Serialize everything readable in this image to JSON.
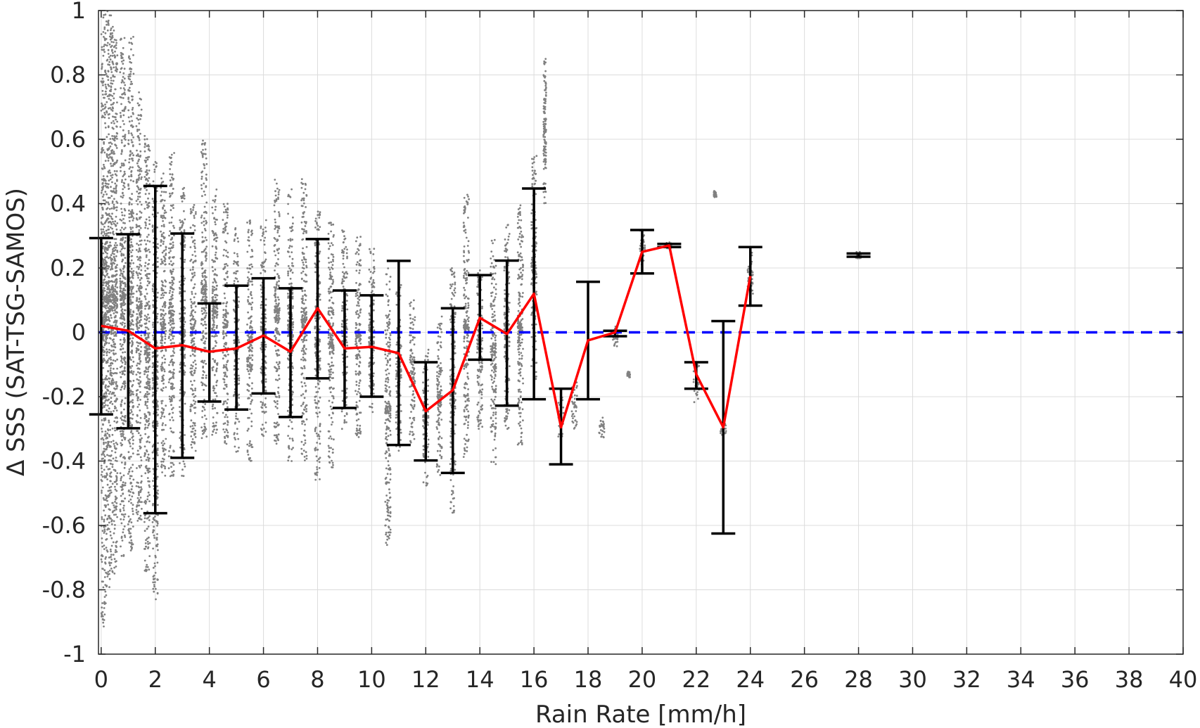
{
  "chart_data": {
    "type": "scatter",
    "title": "",
    "xlabel": "Rain Rate [mm/h]",
    "ylabel": "Δ SSS (SAT-TSG-SAMOS)",
    "xlim": [
      -0.1,
      40
    ],
    "ylim": [
      -1,
      1
    ],
    "x_ticks": [
      0,
      2,
      4,
      6,
      8,
      10,
      12,
      14,
      16,
      18,
      20,
      22,
      24,
      26,
      28,
      30,
      32,
      34,
      36,
      38,
      40
    ],
    "y_ticks": [
      -1,
      -0.8,
      -0.6,
      -0.4,
      -0.2,
      0,
      0.2,
      0.4,
      0.6,
      0.8,
      1
    ],
    "y_tick_labels": [
      "-1",
      "-0.8",
      "-0.6",
      "-0.4",
      "-0.2",
      "0",
      "0.2",
      "0.4",
      "0.6",
      "0.8",
      "1"
    ],
    "grid": true,
    "reference_line": {
      "y": 0,
      "color": "#0000ff",
      "style": "dashed"
    },
    "colors": {
      "scatter": "#808080",
      "mean_line": "#ff0000",
      "error_bars": "#000000"
    },
    "scatter_clusters": [
      {
        "x": 0.1,
        "y_lo": -0.92,
        "y_hi": 1.0,
        "spread": 0.1
      },
      {
        "x": 0.3,
        "y_lo": -0.8,
        "y_hi": 1.0,
        "spread": 0.1
      },
      {
        "x": 0.5,
        "y_lo": -0.75,
        "y_hi": 0.95,
        "spread": 0.1
      },
      {
        "x": 0.8,
        "y_lo": -0.7,
        "y_hi": 0.92,
        "spread": 0.1
      },
      {
        "x": 1.1,
        "y_lo": -0.68,
        "y_hi": 0.92,
        "spread": 0.1
      },
      {
        "x": 1.4,
        "y_lo": -0.6,
        "y_hi": 0.75,
        "spread": 0.1
      },
      {
        "x": 1.7,
        "y_lo": -0.75,
        "y_hi": 0.62,
        "spread": 0.1
      },
      {
        "x": 2.0,
        "y_lo": -0.83,
        "y_hi": 0.55,
        "spread": 0.1
      },
      {
        "x": 2.3,
        "y_lo": -0.45,
        "y_hi": 0.5,
        "spread": 0.1
      },
      {
        "x": 2.6,
        "y_lo": -0.45,
        "y_hi": 0.56,
        "spread": 0.1
      },
      {
        "x": 3.0,
        "y_lo": -0.45,
        "y_hi": 0.45,
        "spread": 0.1
      },
      {
        "x": 3.4,
        "y_lo": -0.37,
        "y_hi": 0.4,
        "spread": 0.1
      },
      {
        "x": 3.8,
        "y_lo": -0.33,
        "y_hi": 0.6,
        "spread": 0.1
      },
      {
        "x": 4.2,
        "y_lo": -0.32,
        "y_hi": 0.45,
        "spread": 0.1
      },
      {
        "x": 4.6,
        "y_lo": -0.35,
        "y_hi": 0.4,
        "spread": 0.1
      },
      {
        "x": 5.0,
        "y_lo": -0.38,
        "y_hi": 0.33,
        "spread": 0.1
      },
      {
        "x": 5.5,
        "y_lo": -0.4,
        "y_hi": 0.35,
        "spread": 0.1
      },
      {
        "x": 6.0,
        "y_lo": -0.33,
        "y_hi": 0.35,
        "spread": 0.1
      },
      {
        "x": 6.5,
        "y_lo": -0.35,
        "y_hi": 0.48,
        "spread": 0.1
      },
      {
        "x": 7.0,
        "y_lo": -0.4,
        "y_hi": 0.45,
        "spread": 0.1
      },
      {
        "x": 7.5,
        "y_lo": -0.4,
        "y_hi": 0.48,
        "spread": 0.1
      },
      {
        "x": 8.0,
        "y_lo": -0.46,
        "y_hi": 0.38,
        "spread": 0.1
      },
      {
        "x": 8.5,
        "y_lo": -0.42,
        "y_hi": 0.35,
        "spread": 0.1
      },
      {
        "x": 9.0,
        "y_lo": -0.3,
        "y_hi": 0.32,
        "spread": 0.1
      },
      {
        "x": 9.5,
        "y_lo": -0.33,
        "y_hi": 0.3,
        "spread": 0.1
      },
      {
        "x": 10.0,
        "y_lo": -0.25,
        "y_hi": 0.26,
        "spread": 0.1
      },
      {
        "x": 10.6,
        "y_lo": -0.67,
        "y_hi": 0.2,
        "spread": 0.1
      },
      {
        "x": 11.0,
        "y_lo": -0.4,
        "y_hi": 0.15,
        "spread": 0.1
      },
      {
        "x": 11.5,
        "y_lo": -0.35,
        "y_hi": 0.1,
        "spread": 0.1
      },
      {
        "x": 12.0,
        "y_lo": -0.48,
        "y_hi": -0.05,
        "spread": 0.1
      },
      {
        "x": 12.5,
        "y_lo": -0.45,
        "y_hi": 0.05,
        "spread": 0.1
      },
      {
        "x": 13.0,
        "y_lo": -0.57,
        "y_hi": 0.2,
        "spread": 0.1
      },
      {
        "x": 13.5,
        "y_lo": -0.4,
        "y_hi": 0.43,
        "spread": 0.1
      },
      {
        "x": 14.0,
        "y_lo": -0.3,
        "y_hi": 0.2,
        "spread": 0.1
      },
      {
        "x": 14.5,
        "y_lo": -0.42,
        "y_hi": 0.3,
        "spread": 0.1
      },
      {
        "x": 15.0,
        "y_lo": -0.3,
        "y_hi": 0.35,
        "spread": 0.1
      },
      {
        "x": 15.5,
        "y_lo": -0.37,
        "y_hi": 0.4,
        "spread": 0.1
      },
      {
        "x": 16.0,
        "y_lo": -0.15,
        "y_hi": 0.55,
        "spread": 0.1
      },
      {
        "x": 16.4,
        "y_lo": 0.4,
        "y_hi": 0.85,
        "spread": 0.05
      },
      {
        "x": 17.0,
        "y_lo": -0.33,
        "y_hi": -0.2,
        "spread": 0.1
      },
      {
        "x": 17.5,
        "y_lo": -0.3,
        "y_hi": -0.15,
        "spread": 0.1
      },
      {
        "x": 18.5,
        "y_lo": -0.33,
        "y_hi": -0.25,
        "spread": 0.1
      },
      {
        "x": 19.0,
        "y_lo": -0.05,
        "y_hi": 0.02,
        "spread": 0.1
      },
      {
        "x": 19.5,
        "y_lo": -0.14,
        "y_hi": -0.12,
        "spread": 0.05
      },
      {
        "x": 20.0,
        "y_lo": 0.2,
        "y_hi": 0.32,
        "spread": 0.1
      },
      {
        "x": 21.0,
        "y_lo": 0.26,
        "y_hi": 0.28,
        "spread": 0.1
      },
      {
        "x": 22.0,
        "y_lo": -0.22,
        "y_hi": -0.1,
        "spread": 0.1
      },
      {
        "x": 22.7,
        "y_lo": 0.42,
        "y_hi": 0.44,
        "spread": 0.05
      },
      {
        "x": 23.0,
        "y_lo": -0.32,
        "y_hi": -0.28,
        "spread": 0.1
      },
      {
        "x": 24.0,
        "y_lo": 0.12,
        "y_hi": 0.26,
        "spread": 0.1
      },
      {
        "x": 28.0,
        "y_lo": 0.23,
        "y_hi": 0.25,
        "spread": 0.1
      }
    ],
    "series": [
      {
        "type": "line",
        "x": [
          0,
          1,
          2,
          3,
          4,
          5,
          6,
          7,
          8,
          9,
          10,
          11,
          12,
          13,
          14,
          15,
          16,
          17,
          18,
          19,
          20,
          21,
          22,
          23,
          24
        ],
        "y": [
          0.02,
          0.005,
          -0.05,
          -0.04,
          -0.06,
          -0.05,
          -0.01,
          -0.06,
          0.075,
          -0.05,
          -0.045,
          -0.065,
          -0.245,
          -0.18,
          0.045,
          -0.005,
          0.12,
          -0.295,
          -0.025,
          0.0,
          0.25,
          0.27,
          -0.13,
          -0.295,
          0.175
        ]
      }
    ],
    "error_bars": [
      {
        "x": 0,
        "low": -0.255,
        "high": 0.293
      },
      {
        "x": 1,
        "low": -0.298,
        "high": 0.305
      },
      {
        "x": 2,
        "low": -0.562,
        "high": 0.455
      },
      {
        "x": 3,
        "low": -0.39,
        "high": 0.307
      },
      {
        "x": 4,
        "low": -0.215,
        "high": 0.09
      },
      {
        "x": 5,
        "low": -0.24,
        "high": 0.145
      },
      {
        "x": 6,
        "low": -0.19,
        "high": 0.168
      },
      {
        "x": 7,
        "low": -0.263,
        "high": 0.137
      },
      {
        "x": 8,
        "low": -0.143,
        "high": 0.29
      },
      {
        "x": 9,
        "low": -0.235,
        "high": 0.13
      },
      {
        "x": 10,
        "low": -0.2,
        "high": 0.115
      },
      {
        "x": 11,
        "low": -0.35,
        "high": 0.222
      },
      {
        "x": 12,
        "low": -0.398,
        "high": -0.093
      },
      {
        "x": 13,
        "low": -0.437,
        "high": 0.075
      },
      {
        "x": 14,
        "low": -0.085,
        "high": 0.178
      },
      {
        "x": 15,
        "low": -0.228,
        "high": 0.223
      },
      {
        "x": 16,
        "low": -0.208,
        "high": 0.447
      },
      {
        "x": 17,
        "low": -0.41,
        "high": -0.175
      },
      {
        "x": 18,
        "low": -0.208,
        "high": 0.157
      },
      {
        "x": 19,
        "low": -0.012,
        "high": 0.005
      },
      {
        "x": 20,
        "low": 0.183,
        "high": 0.318
      },
      {
        "x": 21,
        "low": 0.265,
        "high": 0.275
      },
      {
        "x": 22,
        "low": -0.175,
        "high": -0.093
      },
      {
        "x": 23,
        "low": -0.625,
        "high": 0.035
      },
      {
        "x": 24,
        "low": 0.083,
        "high": 0.265
      },
      {
        "x": 28,
        "low": 0.235,
        "high": 0.245
      }
    ]
  }
}
